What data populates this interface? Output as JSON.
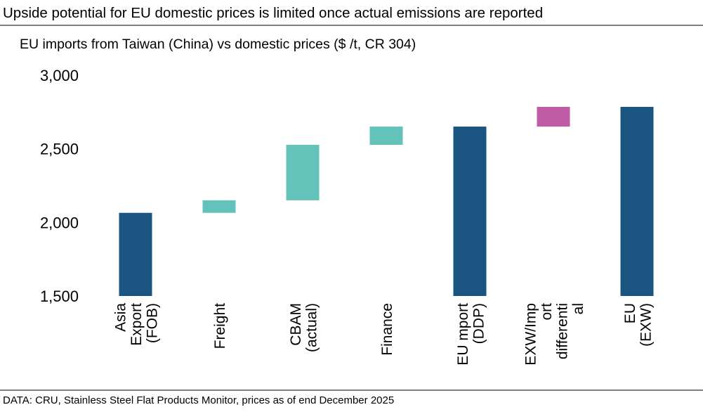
{
  "title": "Upside potential for EU domestic prices is limited once actual emissions are reported",
  "footer": "DATA: CRU, Stainless Steel Flat Products Monitor, prices as of end December 2025",
  "chart_data": {
    "type": "waterfall",
    "title": "EU imports from Taiwan (China) vs domestic prices ($ /t, CR 304)",
    "ylim": [
      1500,
      3000
    ],
    "yticks": [
      1500,
      2000,
      2500,
      3000
    ],
    "ytick_labels": [
      "1,500",
      "2,000",
      "2,500",
      "3,000"
    ],
    "grid": false,
    "colors": {
      "total": "#1a5480",
      "increase": "#63c3bb",
      "differential": "#c05ba6"
    },
    "categories": [
      {
        "label_lines": [
          "Asia",
          "Export",
          "(FOB)"
        ],
        "kind": "total",
        "value": 2065
      },
      {
        "label_lines": [
          "Freight"
        ],
        "kind": "increase",
        "value": 85
      },
      {
        "label_lines": [
          "CBAM",
          "(actual)"
        ],
        "kind": "increase",
        "value": 377
      },
      {
        "label_lines": [
          "Finance"
        ],
        "kind": "increase",
        "value": 124
      },
      {
        "label_lines": [
          "EU mport",
          "(DDP)"
        ],
        "kind": "total",
        "value": 2651
      },
      {
        "label_lines": [
          "EXW/Imp",
          "ort",
          "differenti",
          "al"
        ],
        "kind": "differential",
        "value": 134
      },
      {
        "label_lines": [
          "EU",
          "(EXW)"
        ],
        "kind": "total",
        "value": 2785
      }
    ]
  }
}
